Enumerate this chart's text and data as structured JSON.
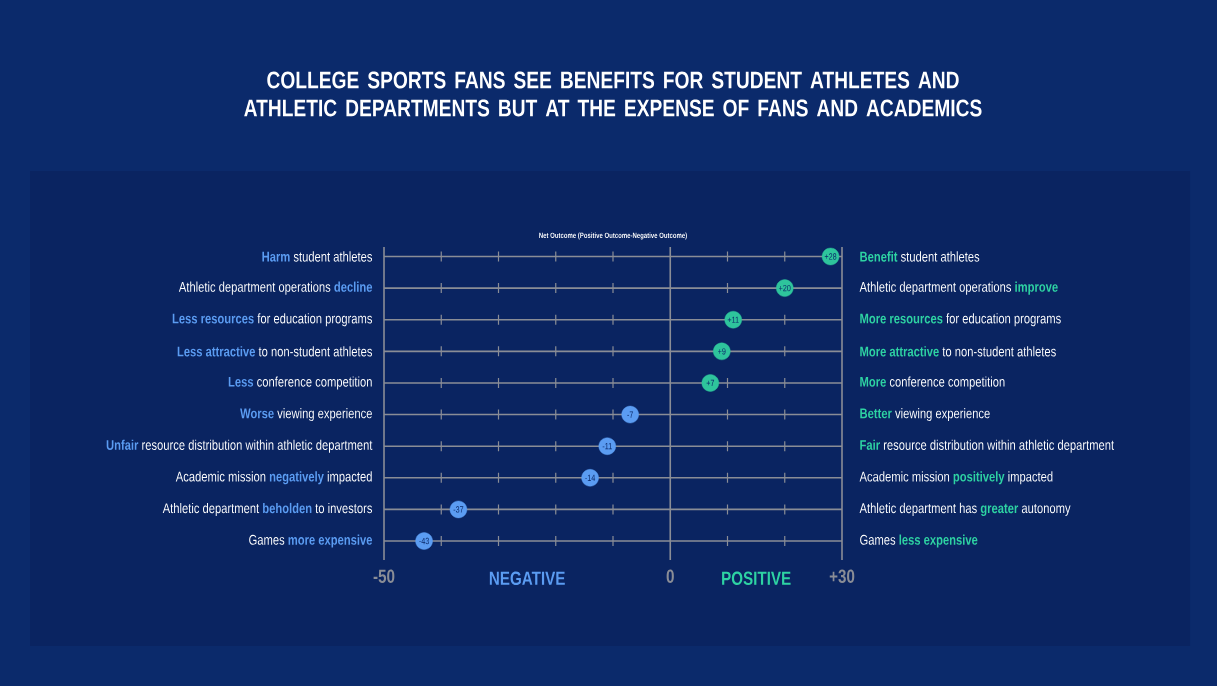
{
  "chart_data": {
    "type": "scatter",
    "orientation": "horizontal",
    "title": "COLLEGE SPORTS FANS SEE BENEFITS FOR STUDENT ATHLETES AND ATHLETIC DEPARTMENTS BUT AT THE EXPENSE OF FANS AND ACADEMICS",
    "xlabel": "Net Outcome (Positive Outcome-Negative Outcome)",
    "categories": [
      "**Harm** student athletes",
      "Athletic department operations **decline**",
      "**Less resources** for education programs",
      "**Less attractive** to non-student athletes",
      "**Less** conference competition",
      "**Worse** viewing experience",
      "**Unfair** resource distribution within athletic department",
      "Academic mission **negatively** impacted",
      "Athletic department **beholden** to investors",
      "Games **more expensive**"
    ],
    "y2_categories": [
      "**Benefit** student athletes",
      "Athletic department operations **improve**",
      "**More resources** for education programs",
      "**More attractive** to non-student athletes",
      "**More** conference competition",
      "**Better** viewing experience",
      "**Fair** resource distribution within athletic department",
      "Academic mission **positively** impacted",
      "Athletic department has **greater** autonomy",
      "Games **less expensive**"
    ],
    "values": [
      28,
      20,
      11,
      9,
      7,
      -7,
      -11,
      -14,
      -37,
      -43
    ],
    "value_labels": [
      "+28",
      "+20",
      "+11",
      "+9",
      "+7",
      "-7",
      "-11",
      "-14",
      "-37",
      "-43"
    ],
    "colors": [
      "#2ec49c",
      "#2ec49c",
      "#2ec49c",
      "#2ec49c",
      "#2ec49c",
      "#5b9cf2",
      "#5b9cf2",
      "#5b9cf2",
      "#5b9cf2",
      "#5b9cf2"
    ],
    "xlim": [
      -50,
      30
    ],
    "xticks": [
      -50,
      {
        "value": -40,
        "label": null
      },
      {
        "value": -30,
        "label": null
      },
      {
        "value": -20,
        "label": null
      },
      {
        "value": -10,
        "label": null
      },
      0,
      {
        "value": 10,
        "label": null
      },
      {
        "value": 20,
        "label": null
      },
      {
        "value": 30,
        "label": "+30"
      }
    ],
    "grid": true,
    "marker": "circle",
    "annotations": [
      "NEGATIVE",
      "POSITIVE"
    ]
  }
}
